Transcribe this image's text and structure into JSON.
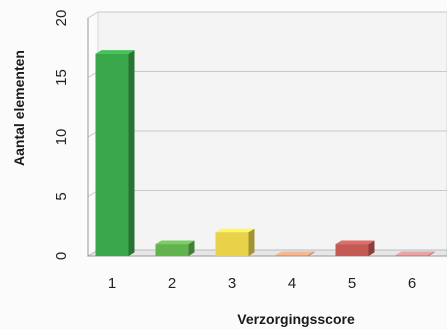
{
  "chart_data": {
    "type": "bar",
    "title": "",
    "xlabel": "Verzorgingsscore",
    "ylabel": "Aantal elementen",
    "categories": [
      "1",
      "2",
      "3",
      "4",
      "5",
      "6"
    ],
    "values": [
      17,
      1,
      2,
      0,
      1,
      0
    ],
    "bar_colors": [
      "#3aa64a",
      "#62b34e",
      "#e8d24a",
      "#d39a7a",
      "#c45a55",
      "#c98a8a"
    ],
    "ylim": [
      0,
      20
    ],
    "yticks": [
      0,
      5,
      10,
      15,
      20
    ],
    "grid": true,
    "legend": "none",
    "style": "3d-column"
  }
}
